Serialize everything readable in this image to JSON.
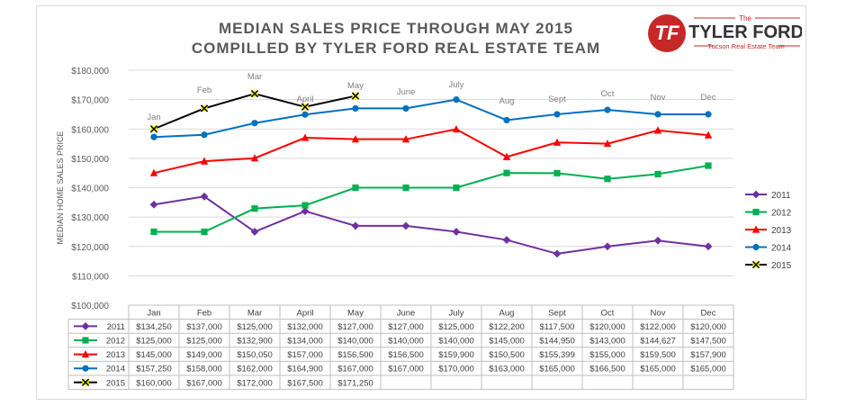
{
  "header": {
    "title_line1": "MEDIAN SALES PRICE THROUGH MAY 2015",
    "title_line2": "COMPILLED BY TYLER FORD REAL ESTATE TEAM"
  },
  "logo": {
    "the": "The",
    "name": "TYLER FORD",
    "tagline": "Tucson Real Estate Team",
    "monogram": "TF",
    "brand_color": "#c62828"
  },
  "chart_data": {
    "type": "line",
    "ylabel": "MEDIAN HOME SALES PRICE",
    "ylim": [
      100000,
      180000
    ],
    "yticks": [
      "$100,000",
      "$110,000",
      "$120,000",
      "$130,000",
      "$140,000",
      "$150,000",
      "$160,000",
      "$170,000",
      "$180,000"
    ],
    "categories": [
      "Jan",
      "Feb",
      "Mar",
      "April",
      "May",
      "June",
      "July",
      "Aug",
      "Sept",
      "Oct",
      "Nov",
      "Dec"
    ],
    "grid": true,
    "legend_position": "right",
    "series": [
      {
        "name": "2011",
        "color": "#7030a0",
        "marker": "diamond",
        "values": [
          134250,
          137000,
          125000,
          132000,
          127000,
          127000,
          125000,
          122200,
          117500,
          120000,
          122000,
          120000
        ],
        "labels": [
          "$134,250",
          "$137,000",
          "$125,000",
          "$132,000",
          "$127,000",
          "$127,000",
          "$125,000",
          "$122,200",
          "$117,500",
          "$120,000",
          "$122,000",
          "$120,000"
        ]
      },
      {
        "name": "2012",
        "color": "#00b050",
        "marker": "square",
        "values": [
          125000,
          125000,
          132900,
          134000,
          140000,
          140000,
          140000,
          145000,
          144950,
          143000,
          144627,
          147500
        ],
        "labels": [
          "$125,000",
          "$125,000",
          "$132,900",
          "$134,000",
          "$140,000",
          "$140,000",
          "$140,000",
          "$145,000",
          "$144,950",
          "$143,000",
          "$144,627",
          "$147,500"
        ]
      },
      {
        "name": "2013",
        "color": "#ff0000",
        "marker": "triangle",
        "values": [
          145000,
          149000,
          150050,
          157000,
          156500,
          156500,
          159900,
          150500,
          155399,
          155000,
          159500,
          157900
        ],
        "labels": [
          "$145,000",
          "$149,000",
          "$150,050",
          "$157,000",
          "$156,500",
          "$156,500",
          "$159,900",
          "$150,500",
          "$155,399",
          "$155,000",
          "$159,500",
          "$157,900"
        ]
      },
      {
        "name": "2014",
        "color": "#0070c0",
        "marker": "circle",
        "values": [
          157250,
          158000,
          162000,
          164900,
          167000,
          167000,
          170000,
          163000,
          165000,
          166500,
          165000,
          165000
        ],
        "labels": [
          "$157,250",
          "$158,000",
          "$162,000",
          "$164,900",
          "$167,000",
          "$167,000",
          "$170,000",
          "$163,000",
          "$165,000",
          "$166,500",
          "$165,000",
          "$165,000"
        ]
      },
      {
        "name": "2015",
        "color": "#000000",
        "marker": "x",
        "values": [
          160000,
          167000,
          172000,
          167500,
          171250,
          null,
          null,
          null,
          null,
          null,
          null,
          null
        ],
        "labels": [
          "$160,000",
          "$167,000",
          "$172,000",
          "$167,500",
          "$171,250",
          "",
          "",
          "",
          "",
          "",
          "",
          ""
        ]
      }
    ]
  }
}
